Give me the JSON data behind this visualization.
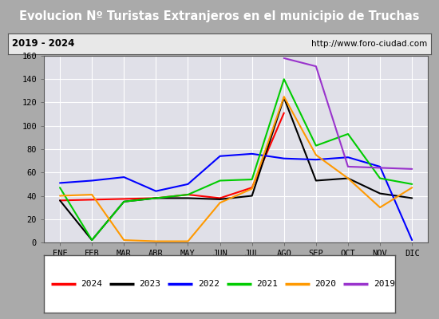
{
  "title": "Evolucion Nº Turistas Extranjeros en el municipio de Truchas",
  "subtitle_left": "2019 - 2024",
  "subtitle_right": "http://www.foro-ciudad.com",
  "x_labels": [
    "ENE",
    "FEB",
    "MAR",
    "ABR",
    "MAY",
    "JUN",
    "JUL",
    "AGO",
    "SEP",
    "OCT",
    "NOV",
    "DIC"
  ],
  "ylim": [
    0,
    160
  ],
  "yticks": [
    0,
    20,
    40,
    60,
    80,
    100,
    120,
    140,
    160
  ],
  "series": {
    "2024": {
      "color": "#ff0000",
      "data": [
        36,
        null,
        null,
        38,
        41,
        38,
        47,
        111,
        null,
        null,
        null,
        null
      ]
    },
    "2023": {
      "color": "#000000",
      "data": [
        36,
        2,
        35,
        38,
        38,
        37,
        40,
        124,
        53,
        55,
        42,
        38
      ]
    },
    "2022": {
      "color": "#0000ff",
      "data": [
        51,
        53,
        56,
        44,
        50,
        74,
        76,
        72,
        71,
        73,
        65,
        2
      ]
    },
    "2021": {
      "color": "#00cc00",
      "data": [
        47,
        2,
        35,
        38,
        41,
        53,
        54,
        140,
        83,
        93,
        55,
        50
      ]
    },
    "2020": {
      "color": "#ff9900",
      "data": [
        40,
        41,
        2,
        1,
        1,
        34,
        46,
        125,
        75,
        55,
        30,
        47
      ]
    },
    "2019": {
      "color": "#9933cc",
      "data": [
        null,
        null,
        null,
        null,
        null,
        null,
        null,
        158,
        151,
        65,
        64,
        63
      ]
    }
  },
  "legend_order": [
    "2024",
    "2023",
    "2022",
    "2021",
    "2020",
    "2019"
  ],
  "title_bg_color": "#4477cc",
  "title_text_color": "#ffffff",
  "subtitle_bg_color": "#e8e8e8",
  "plot_bg_color": "#e0e0e8",
  "grid_color": "#ffffff",
  "outer_bg_color": "#aaaaaa",
  "border_color": "#555555"
}
